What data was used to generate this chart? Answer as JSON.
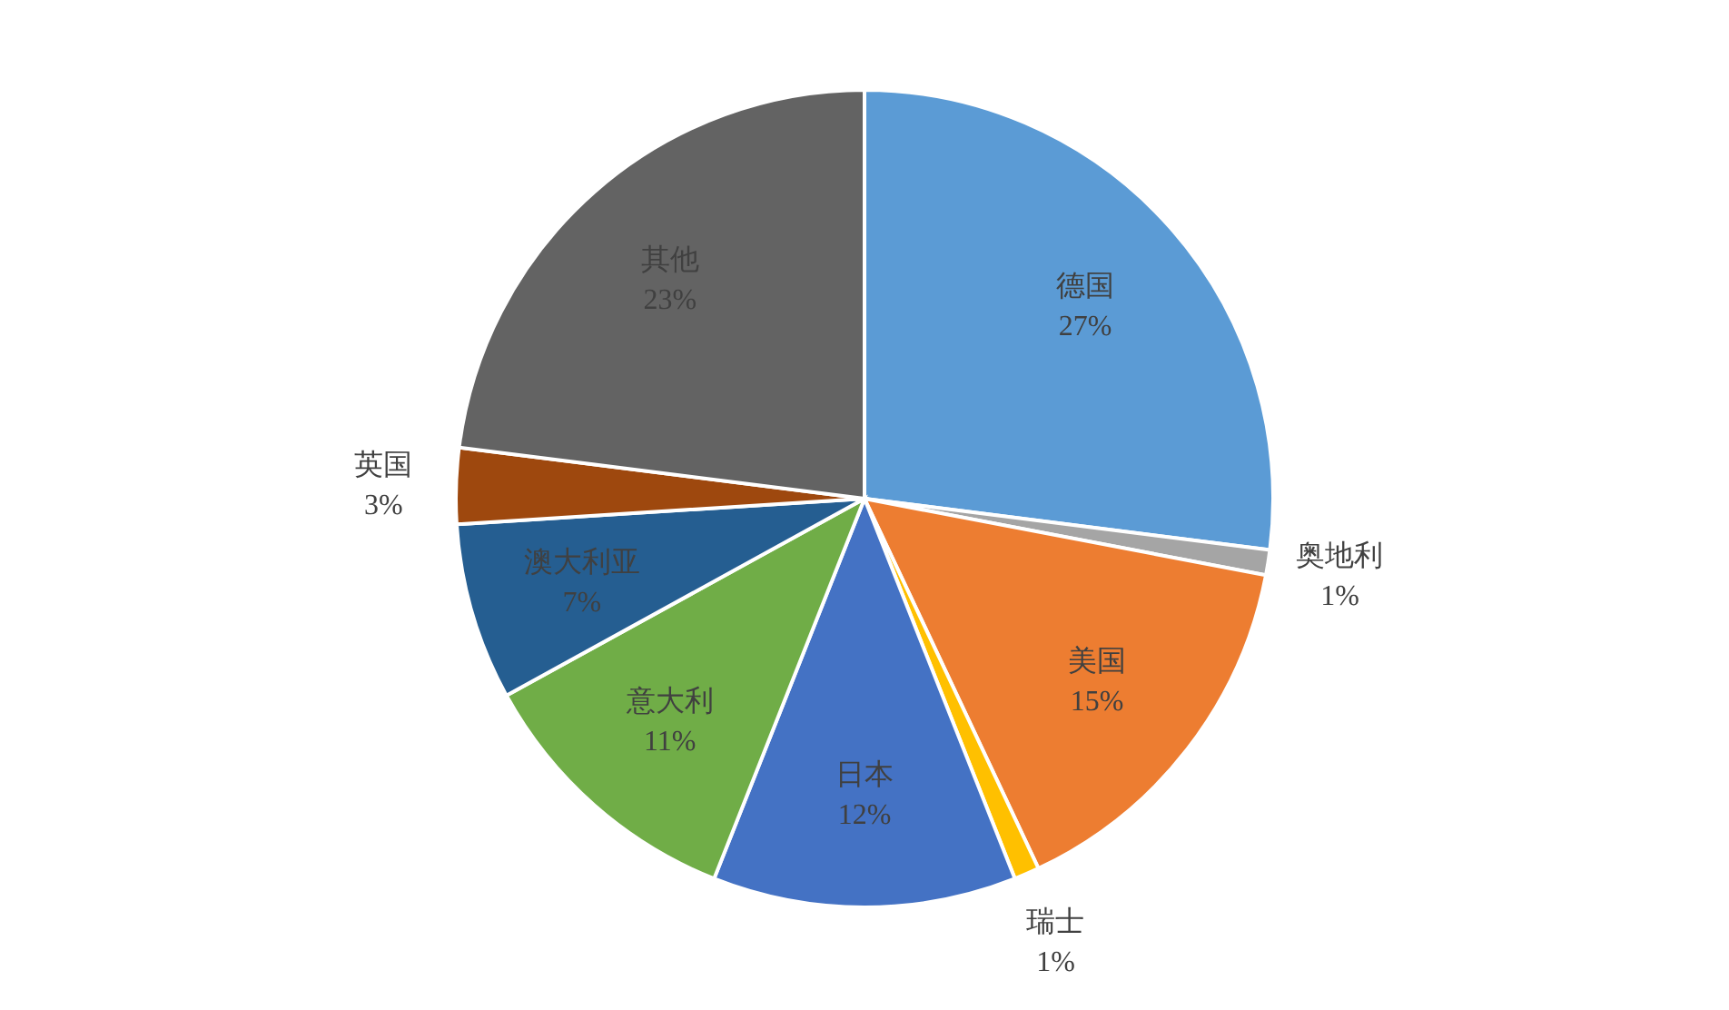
{
  "chart_data": {
    "type": "pie",
    "categories": [
      "德国",
      "奥地利",
      "美国",
      "瑞士",
      "日本",
      "意大利",
      "澳大利亚",
      "英国",
      "其他"
    ],
    "values": [
      27,
      1,
      15,
      1,
      12,
      11,
      7,
      3,
      23
    ],
    "colors": [
      "#5b9bd5",
      "#a5a5a5",
      "#ed7d31",
      "#ffc000",
      "#4472c4",
      "#70ad47",
      "#255e91",
      "#9e480e",
      "#636363"
    ],
    "value_labels": [
      "27%",
      "1%",
      "15%",
      "1%",
      "12%",
      "11%",
      "7%",
      "3%",
      "23%"
    ],
    "legend": false
  }
}
